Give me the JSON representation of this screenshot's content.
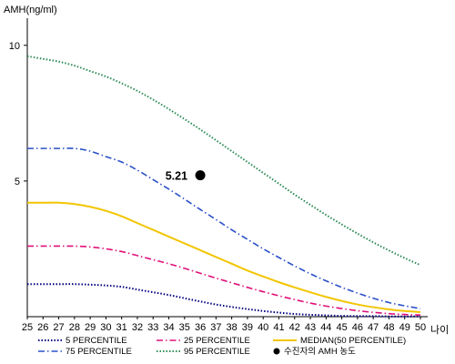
{
  "chart_data": {
    "type": "line",
    "ylabel": "AMH(ng/ml)",
    "xlabel": "나이",
    "x": [
      25,
      26,
      27,
      28,
      29,
      30,
      31,
      32,
      33,
      34,
      35,
      36,
      37,
      38,
      39,
      40,
      41,
      42,
      43,
      44,
      45,
      46,
      47,
      48,
      49,
      50
    ],
    "xlim": [
      25,
      50
    ],
    "ylim": [
      0,
      11
    ],
    "yticks": [
      5,
      10
    ],
    "series": [
      {
        "name": "5 PERCENTILE",
        "color": "#000080",
        "dash": "dotted",
        "values": [
          1.2,
          1.2,
          1.2,
          1.2,
          1.18,
          1.15,
          1.1,
          1.0,
          0.9,
          0.8,
          0.68,
          0.56,
          0.45,
          0.36,
          0.28,
          0.21,
          0.15,
          0.1,
          0.07,
          0.05,
          0.03,
          0.02,
          0.02,
          0.01,
          0.01,
          0.01
        ]
      },
      {
        "name": "25 PERCENTILE",
        "color": "#e0107a",
        "dash": "dashdot",
        "values": [
          2.6,
          2.6,
          2.6,
          2.6,
          2.57,
          2.5,
          2.4,
          2.25,
          2.1,
          1.95,
          1.78,
          1.6,
          1.42,
          1.25,
          1.08,
          0.92,
          0.77,
          0.63,
          0.5,
          0.39,
          0.3,
          0.22,
          0.16,
          0.11,
          0.08,
          0.06
        ]
      },
      {
        "name": "MEDIAN(50 PERCENTILE)",
        "color": "#f2c500",
        "dash": "solid",
        "values": [
          4.2,
          4.2,
          4.2,
          4.15,
          4.05,
          3.9,
          3.7,
          3.45,
          3.2,
          2.95,
          2.7,
          2.45,
          2.2,
          1.95,
          1.7,
          1.48,
          1.27,
          1.08,
          0.9,
          0.73,
          0.58,
          0.45,
          0.35,
          0.27,
          0.21,
          0.17
        ]
      },
      {
        "name": "75 PERCENTILE",
        "color": "#2b50c8",
        "dash": "dashdot",
        "values": [
          6.2,
          6.2,
          6.2,
          6.2,
          6.1,
          5.9,
          5.7,
          5.4,
          5.05,
          4.7,
          4.33,
          3.95,
          3.58,
          3.2,
          2.85,
          2.5,
          2.18,
          1.87,
          1.58,
          1.32,
          1.08,
          0.87,
          0.68,
          0.52,
          0.4,
          0.3
        ]
      },
      {
        "name": "95 PERCENTILE",
        "color": "#2e8b57",
        "dash": "dotted",
        "values": [
          9.6,
          9.5,
          9.4,
          9.25,
          9.05,
          8.85,
          8.6,
          8.32,
          8.0,
          7.65,
          7.28,
          6.9,
          6.5,
          6.1,
          5.7,
          5.3,
          4.9,
          4.5,
          4.12,
          3.75,
          3.4,
          3.06,
          2.74,
          2.44,
          2.16,
          1.9
        ]
      }
    ],
    "annotation": {
      "name": "수진자의 AMH 농도",
      "x": 36,
      "y": 5.21,
      "label": "5.21",
      "color": "#000000"
    },
    "legend": [
      "5 PERCENTILE",
      "25 PERCENTILE",
      "MEDIAN(50 PERCENTILE)",
      "75 PERCENTILE",
      "95 PERCENTILE",
      "수진자의 AMH 농도"
    ],
    "legend_placement": "bottom",
    "grid": false
  }
}
